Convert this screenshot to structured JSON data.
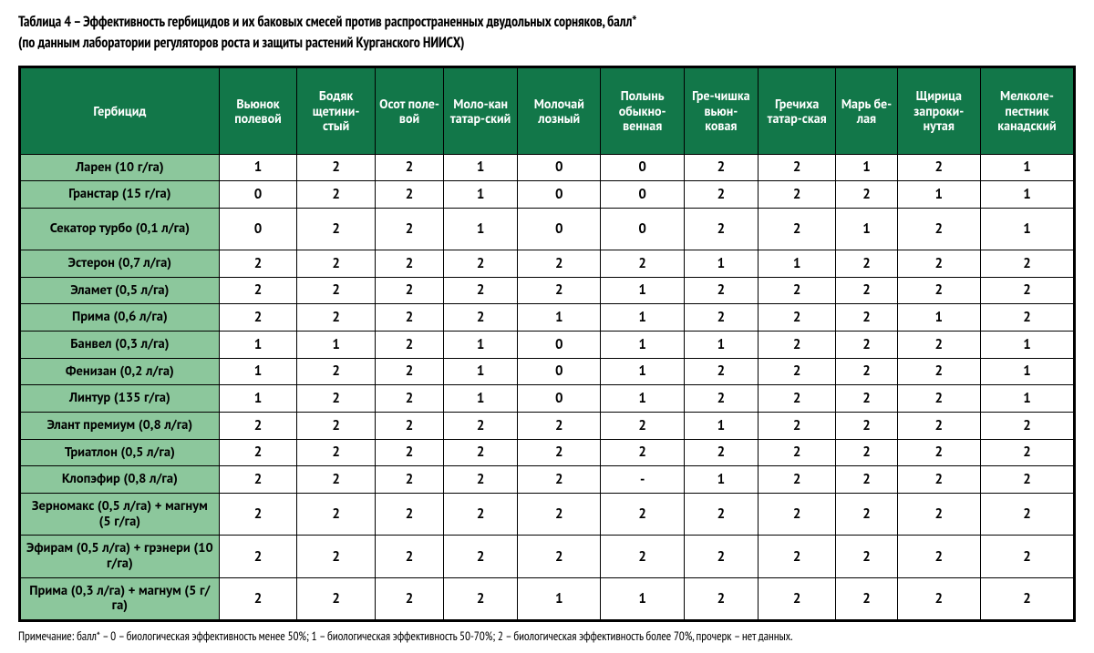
{
  "title": "Таблица 4 – Эффективность гербицидов и их баковых смесей против распространенных двудольных сорняков, балл*",
  "subtitle": "(по данным лаборатории регуляторов роста и защиты растений Курганского НИИСХ)",
  "footnote": "Примечание: балл* – 0 – биологическая эффективность менее 50%; 1 – биологическая эффективность 50-70%; 2 – биологическая эффективность более 70%, прочерк – нет данных.",
  "table": {
    "type": "table",
    "header_bg": "#127749",
    "header_fg": "#ffffff",
    "rowlabel_bg": "#8cc79c",
    "cell_bg": "#ffffff",
    "border_color": "#000000",
    "font_family": "PT Sans Narrow",
    "header_fontsize_pt": 11,
    "cell_fontsize_pt": 11,
    "col_widths_pct": [
      18.9,
      7.4,
      7.4,
      6.5,
      7.0,
      7.9,
      7.9,
      7.0,
      7.4,
      5.8,
      7.9,
      8.9
    ],
    "columns": [
      "Гербицид",
      "Вьюнок полевой",
      "Бодяк щетини-стый",
      "Осот поле-вой",
      "Моло-кан татар-ский",
      "Молочай лозный",
      "Полынь обыкно-венная",
      "Гре-чишка вьюн-ковая",
      "Гречиха татар-ская",
      "Марь бе-лая",
      "Щирица запроки-нутая",
      "Мелколе-пестник канадский"
    ],
    "rows": [
      {
        "label": "Ларен (10 г/га)",
        "v": [
          "1",
          "2",
          "2",
          "1",
          "0",
          "0",
          "2",
          "2",
          "1",
          "2",
          "1"
        ],
        "tall": false
      },
      {
        "label": "Гранстар (15 г/га)",
        "v": [
          "0",
          "2",
          "2",
          "1",
          "0",
          "0",
          "2",
          "2",
          "2",
          "1",
          "1"
        ],
        "tall": false
      },
      {
        "label": "Секатор турбо (0,1 л/га)",
        "v": [
          "0",
          "2",
          "2",
          "1",
          "0",
          "0",
          "2",
          "2",
          "1",
          "2",
          "1"
        ],
        "tall": true
      },
      {
        "label": "Эстерон (0,7 л/га)",
        "v": [
          "2",
          "2",
          "2",
          "2",
          "2",
          "2",
          "1",
          "1",
          "2",
          "2",
          "2"
        ],
        "tall": false
      },
      {
        "label": "Эламет (0,5 л/га)",
        "v": [
          "2",
          "2",
          "2",
          "2",
          "2",
          "1",
          "2",
          "2",
          "2",
          "2",
          "2"
        ],
        "tall": false
      },
      {
        "label": "Прима (0,6 л/га)",
        "v": [
          "2",
          "2",
          "2",
          "2",
          "1",
          "1",
          "2",
          "2",
          "2",
          "1",
          "2"
        ],
        "tall": false
      },
      {
        "label": "Банвел (0,3 л/га)",
        "v": [
          "1",
          "1",
          "2",
          "1",
          "0",
          "1",
          "1",
          "2",
          "2",
          "2",
          "1"
        ],
        "tall": false
      },
      {
        "label": "Фенизан (0,2 л/га)",
        "v": [
          "1",
          "2",
          "2",
          "1",
          "0",
          "1",
          "2",
          "2",
          "2",
          "2",
          "1"
        ],
        "tall": false
      },
      {
        "label": "Линтур (135 г/га)",
        "v": [
          "1",
          "2",
          "2",
          "1",
          "0",
          "1",
          "2",
          "2",
          "2",
          "2",
          "1"
        ],
        "tall": false
      },
      {
        "label": "Элант премиум (0,8 л/га)",
        "v": [
          "2",
          "2",
          "2",
          "2",
          "2",
          "2",
          "1",
          "2",
          "2",
          "2",
          "2"
        ],
        "tall": false
      },
      {
        "label": "Триатлон (0,5 л/га)",
        "v": [
          "2",
          "2",
          "2",
          "2",
          "2",
          "2",
          "2",
          "2",
          "2",
          "2",
          "2"
        ],
        "tall": false
      },
      {
        "label": "Клопэфир (0,8 л/га)",
        "v": [
          "2",
          "2",
          "2",
          "2",
          "2",
          "-",
          "1",
          "2",
          "2",
          "2",
          "2"
        ],
        "tall": false
      },
      {
        "label": "Зерномакс (0,5 л/га) + магнум (5 г/га)",
        "v": [
          "2",
          "2",
          "2",
          "2",
          "2",
          "2",
          "2",
          "2",
          "2",
          "2",
          "2"
        ],
        "tall": true
      },
      {
        "label": "Эфирам (0,5 л/га) + грэнери (10 г/га)",
        "v": [
          "2",
          "2",
          "2",
          "2",
          "2",
          "2",
          "2",
          "2",
          "2",
          "2",
          "2"
        ],
        "tall": true
      },
      {
        "label": "Прима (0,3 л/га) + магнум (5 г/га)",
        "v": [
          "2",
          "2",
          "2",
          "2",
          "1",
          "1",
          "2",
          "2",
          "2",
          "2",
          "2"
        ],
        "tall": true
      }
    ]
  }
}
